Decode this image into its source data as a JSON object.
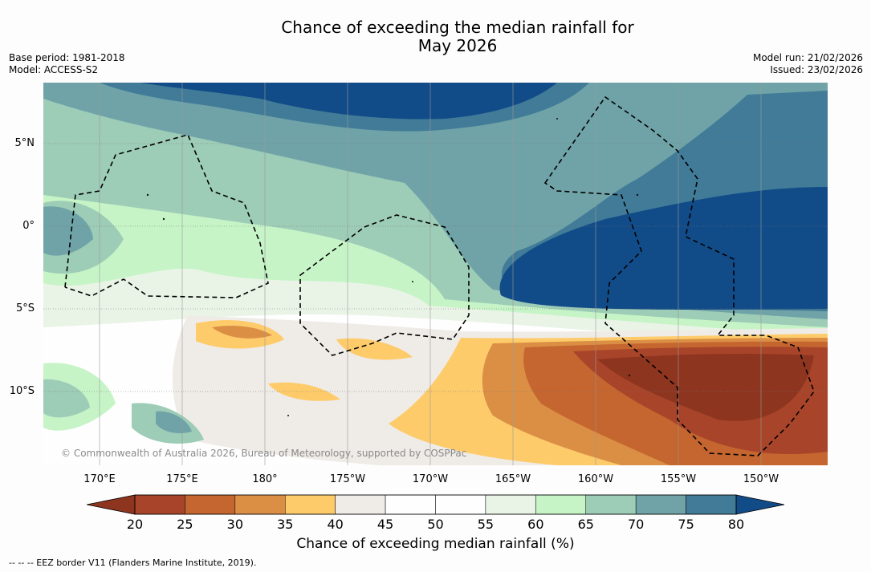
{
  "title": {
    "line1": "Chance of exceeding the median rainfall for",
    "line2": "May 2026"
  },
  "meta": {
    "base_period": "Base period: 1981-2018",
    "model": "Model: ACCESS-S2",
    "model_run": "Model run: 21/02/2026",
    "issued": "Issued: 23/02/2026"
  },
  "map": {
    "latitude_labels": [
      "5°N",
      "0°",
      "5°S",
      "10°S"
    ],
    "longitude_labels": [
      "170°E",
      "175°E",
      "180°",
      "175°W",
      "170°W",
      "165°W",
      "160°W",
      "155°W",
      "150°W"
    ],
    "copyright": "© Commonwealth of Australia 2026, Bureau of Meteorology, supported by COSPPac"
  },
  "colorbar": {
    "label": "Chance of exceeding median rainfall (%)",
    "ticks": [
      "20",
      "25",
      "30",
      "35",
      "40",
      "45",
      "50",
      "55",
      "60",
      "65",
      "70",
      "75",
      "80"
    ],
    "low_color": "#8e3520",
    "high_color": "#124c88",
    "colors": [
      "#a8442a",
      "#c5652f",
      "#db8f45",
      "#fecb6b",
      "#efebe6",
      "#fefefe",
      "#fefefe",
      "#e9f4e6",
      "#c6f4c7",
      "#9dccb7",
      "#6fa3a7",
      "#417b98"
    ]
  },
  "legend": {
    "eez": "--  --  -- EEZ border V11 (Flanders Marine Institute, 2019)."
  }
}
